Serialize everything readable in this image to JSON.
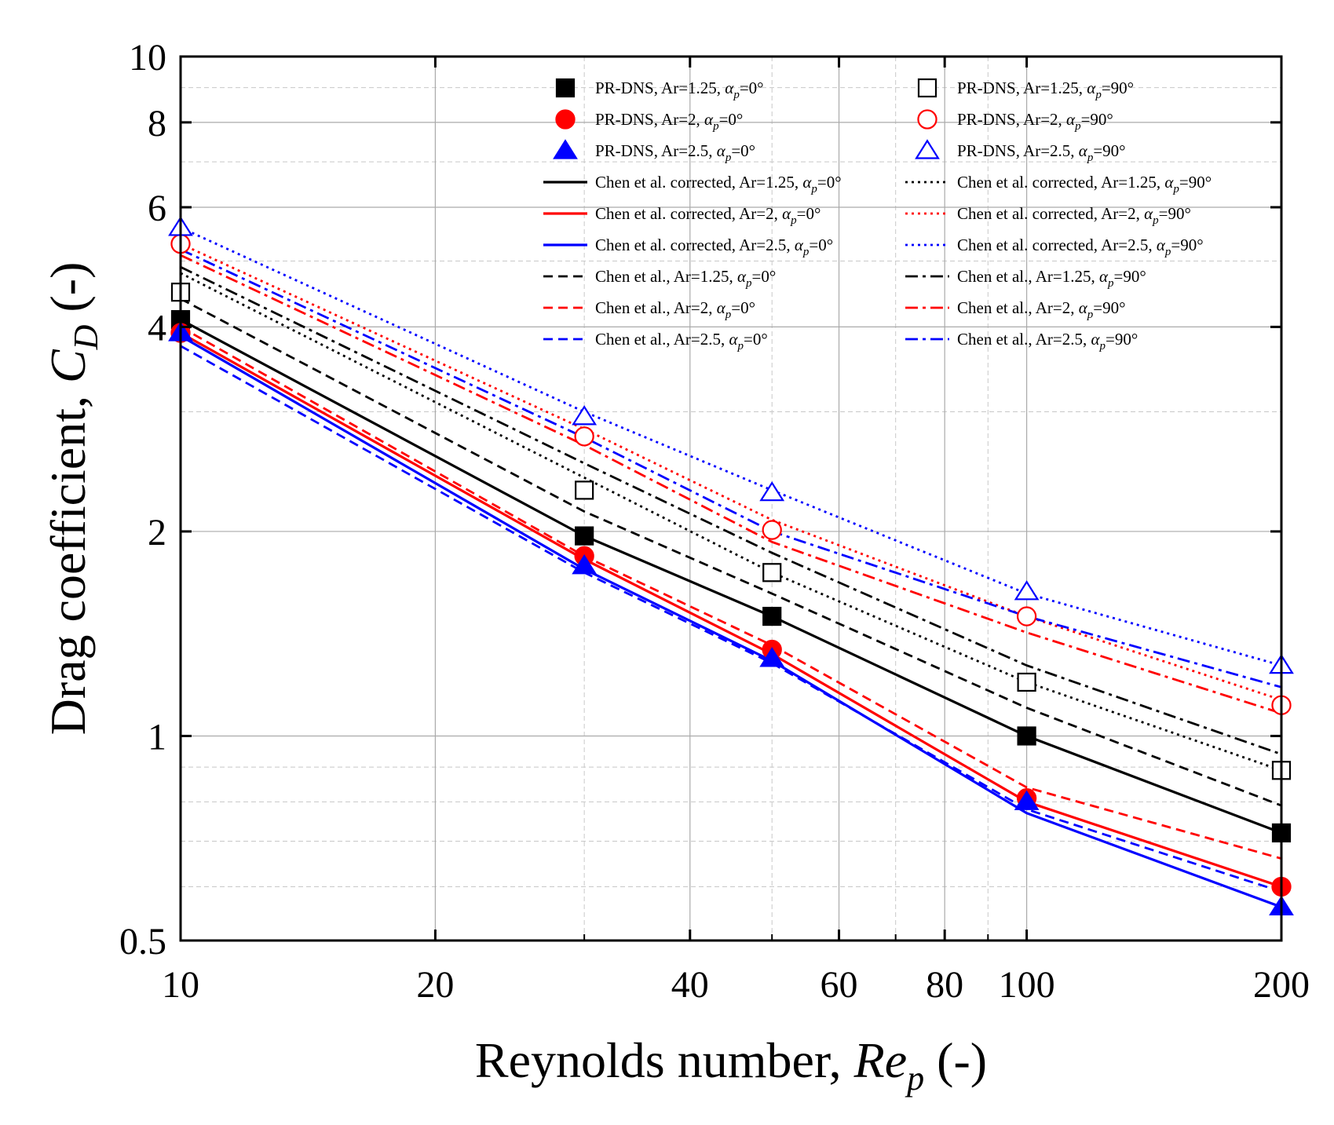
{
  "chart_data": {
    "type": "line",
    "title": "",
    "xlabel": {
      "text": "Reynolds number, ",
      "var": "Re",
      "sub": "p",
      "unit": " (-)"
    },
    "ylabel": {
      "text": "Drag coefficient, ",
      "var": "C",
      "sub": "D",
      "unit": " (-)"
    },
    "xscale": "log",
    "yscale": "log",
    "xlim": [
      10,
      200
    ],
    "ylim": [
      0.5,
      10
    ],
    "x_ticks": [
      10,
      20,
      40,
      60,
      80,
      100,
      200
    ],
    "x_tick_labels": [
      "10",
      "20",
      "40",
      "60",
      "80",
      "100",
      "200"
    ],
    "y_ticks": [
      0.5,
      1,
      2,
      4,
      6,
      8,
      10
    ],
    "y_tick_labels": [
      "0.5",
      "1",
      "2",
      "4",
      "6",
      "8",
      "10"
    ],
    "grid": true,
    "legend_position": "top-right",
    "colors": {
      "black": "#000000",
      "red": "#ff0000",
      "blue": "#0000ff"
    },
    "x": [
      10,
      30,
      50,
      100,
      200
    ],
    "markers": [
      {
        "name": "PR-DNS, Ar=1.25, αp=0°",
        "color": "#000000",
        "symbol": "square",
        "filled": true,
        "x": [
          10,
          30,
          50,
          100,
          200
        ],
        "y": [
          4.1,
          1.97,
          1.5,
          1.0,
          0.72
        ]
      },
      {
        "name": "PR-DNS, Ar=2, αp=0°",
        "color": "#ff0000",
        "symbol": "circle",
        "filled": true,
        "x": [
          10,
          30,
          50,
          100,
          200
        ],
        "y": [
          3.92,
          1.84,
          1.34,
          0.81,
          0.6
        ]
      },
      {
        "name": "PR-DNS, Ar=2.5, αp=0°",
        "color": "#0000ff",
        "symbol": "triangle",
        "filled": true,
        "x": [
          10,
          30,
          50,
          100,
          200
        ],
        "y": [
          3.92,
          1.78,
          1.3,
          0.8,
          0.56
        ]
      },
      {
        "name": "PR-DNS, Ar=1.25, αp=90°",
        "color": "#000000",
        "symbol": "square",
        "filled": false,
        "x": [
          10,
          30,
          50,
          100,
          200
        ],
        "y": [
          4.5,
          2.3,
          1.74,
          1.2,
          0.89
        ]
      },
      {
        "name": "PR-DNS, Ar=2, αp=90°",
        "color": "#ff0000",
        "symbol": "circle",
        "filled": false,
        "x": [
          10,
          30,
          50,
          100,
          200
        ],
        "y": [
          5.3,
          2.76,
          2.01,
          1.5,
          1.11
        ]
      },
      {
        "name": "PR-DNS, Ar=2.5, αp=90°",
        "color": "#0000ff",
        "symbol": "triangle",
        "filled": false,
        "x": [
          10,
          30,
          50,
          100,
          200
        ],
        "y": [
          5.6,
          2.95,
          2.28,
          1.63,
          1.27
        ]
      }
    ],
    "lines": [
      {
        "name": "Chen et al. corrected, Ar=1.25, αp=0°",
        "color": "#000000",
        "style": "solid",
        "y": [
          4.1,
          1.97,
          1.5,
          1.0,
          0.72
        ]
      },
      {
        "name": "Chen et al. corrected, Ar=2, αp=0°",
        "color": "#ff0000",
        "style": "solid",
        "y": [
          3.92,
          1.82,
          1.32,
          0.8,
          0.6
        ]
      },
      {
        "name": "Chen et al. corrected, Ar=2.5, αp=0°",
        "color": "#0000ff",
        "style": "solid",
        "y": [
          3.88,
          1.76,
          1.29,
          0.77,
          0.56
        ]
      },
      {
        "name": "Chen et al., Ar=1.25, αp=0°",
        "color": "#000000",
        "style": "dashed",
        "y": [
          4.4,
          2.14,
          1.62,
          1.1,
          0.79
        ]
      },
      {
        "name": "Chen et al., Ar=2, αp=0°",
        "color": "#ff0000",
        "style": "dashed",
        "y": [
          4.0,
          1.84,
          1.36,
          0.84,
          0.66
        ]
      },
      {
        "name": "Chen et al., Ar=2.5, αp=0°",
        "color": "#0000ff",
        "style": "dashed",
        "y": [
          3.75,
          1.74,
          1.28,
          0.78,
          0.59
        ]
      },
      {
        "name": "Chen et al. corrected, Ar=1.25, αp=90°",
        "color": "#000000",
        "style": "dotted",
        "y": [
          4.8,
          2.4,
          1.74,
          1.2,
          0.89
        ]
      },
      {
        "name": "Chen et al. corrected, Ar=2, αp=90°",
        "color": "#ff0000",
        "style": "dotted",
        "y": [
          5.3,
          2.83,
          2.08,
          1.5,
          1.13
        ]
      },
      {
        "name": "Chen et al. corrected, Ar=2.5, αp=90°",
        "color": "#0000ff",
        "style": "dotted",
        "y": [
          5.6,
          3.0,
          2.3,
          1.62,
          1.27
        ]
      },
      {
        "name": "Chen et al., Ar=1.25, αp=90°",
        "color": "#000000",
        "style": "dashdot",
        "y": [
          4.9,
          2.52,
          1.86,
          1.27,
          0.94
        ]
      },
      {
        "name": "Chen et al., Ar=2, αp=90°",
        "color": "#ff0000",
        "style": "dashdot",
        "y": [
          5.1,
          2.68,
          1.93,
          1.42,
          1.08
        ]
      },
      {
        "name": "Chen et al., Ar=2.5, αp=90°",
        "color": "#0000ff",
        "style": "dashdot",
        "y": [
          5.2,
          2.75,
          2.0,
          1.5,
          1.18
        ]
      }
    ],
    "legend": [
      {
        "kind": "marker",
        "ref": 0,
        "label": "PR-DNS, Ar=1.25, ",
        "sym": "α",
        "sub": "p",
        "tail": "=0°"
      },
      {
        "kind": "marker",
        "ref": 3,
        "label": "PR-DNS, Ar=1.25, ",
        "sym": "α",
        "sub": "p",
        "tail": "=90°"
      },
      {
        "kind": "marker",
        "ref": 1,
        "label": "PR-DNS, Ar=2, ",
        "sym": "α",
        "sub": "p",
        "tail": "=0°"
      },
      {
        "kind": "marker",
        "ref": 4,
        "label": "PR-DNS, Ar=2, ",
        "sym": "α",
        "sub": "p",
        "tail": "=90°"
      },
      {
        "kind": "marker",
        "ref": 2,
        "label": "PR-DNS, Ar=2.5, ",
        "sym": "α",
        "sub": "p",
        "tail": "=0°"
      },
      {
        "kind": "marker",
        "ref": 5,
        "label": "PR-DNS, Ar=2.5, ",
        "sym": "α",
        "sub": "p",
        "tail": "=90°"
      },
      {
        "kind": "line",
        "ref": 0,
        "label": "Chen et al. corrected, Ar=1.25, ",
        "sym": "α",
        "sub": "p",
        "tail": "=0°"
      },
      {
        "kind": "line",
        "ref": 6,
        "label": "Chen et al. corrected, Ar=1.25, ",
        "sym": "α",
        "sub": "p",
        "tail": "=90°"
      },
      {
        "kind": "line",
        "ref": 1,
        "label": "Chen et al. corrected, Ar=2, ",
        "sym": "α",
        "sub": "p",
        "tail": "=0°"
      },
      {
        "kind": "line",
        "ref": 7,
        "label": "Chen et al. corrected, Ar=2, ",
        "sym": "α",
        "sub": "p",
        "tail": "=90°"
      },
      {
        "kind": "line",
        "ref": 2,
        "label": "Chen et al. corrected, Ar=2.5, ",
        "sym": "α",
        "sub": "p",
        "tail": "=0°"
      },
      {
        "kind": "line",
        "ref": 8,
        "label": "Chen et al. corrected, Ar=2.5, ",
        "sym": "α",
        "sub": "p",
        "tail": "=90°"
      },
      {
        "kind": "line",
        "ref": 3,
        "label": "Chen et al., Ar=1.25, ",
        "sym": "α",
        "sub": "p",
        "tail": "=0°"
      },
      {
        "kind": "line",
        "ref": 9,
        "label": "Chen et al., Ar=1.25, ",
        "sym": "α",
        "sub": "p",
        "tail": "=90°"
      },
      {
        "kind": "line",
        "ref": 4,
        "label": "Chen et al., Ar=2, ",
        "sym": "α",
        "sub": "p",
        "tail": "=0°"
      },
      {
        "kind": "line",
        "ref": 10,
        "label": "Chen et al., Ar=2, ",
        "sym": "α",
        "sub": "p",
        "tail": "=90°"
      },
      {
        "kind": "line",
        "ref": 5,
        "label": "Chen et al., Ar=2.5, ",
        "sym": "α",
        "sub": "p",
        "tail": "=0°"
      },
      {
        "kind": "line",
        "ref": 11,
        "label": "Chen et al., Ar=2.5, ",
        "sym": "α",
        "sub": "p",
        "tail": "=90°"
      }
    ]
  }
}
